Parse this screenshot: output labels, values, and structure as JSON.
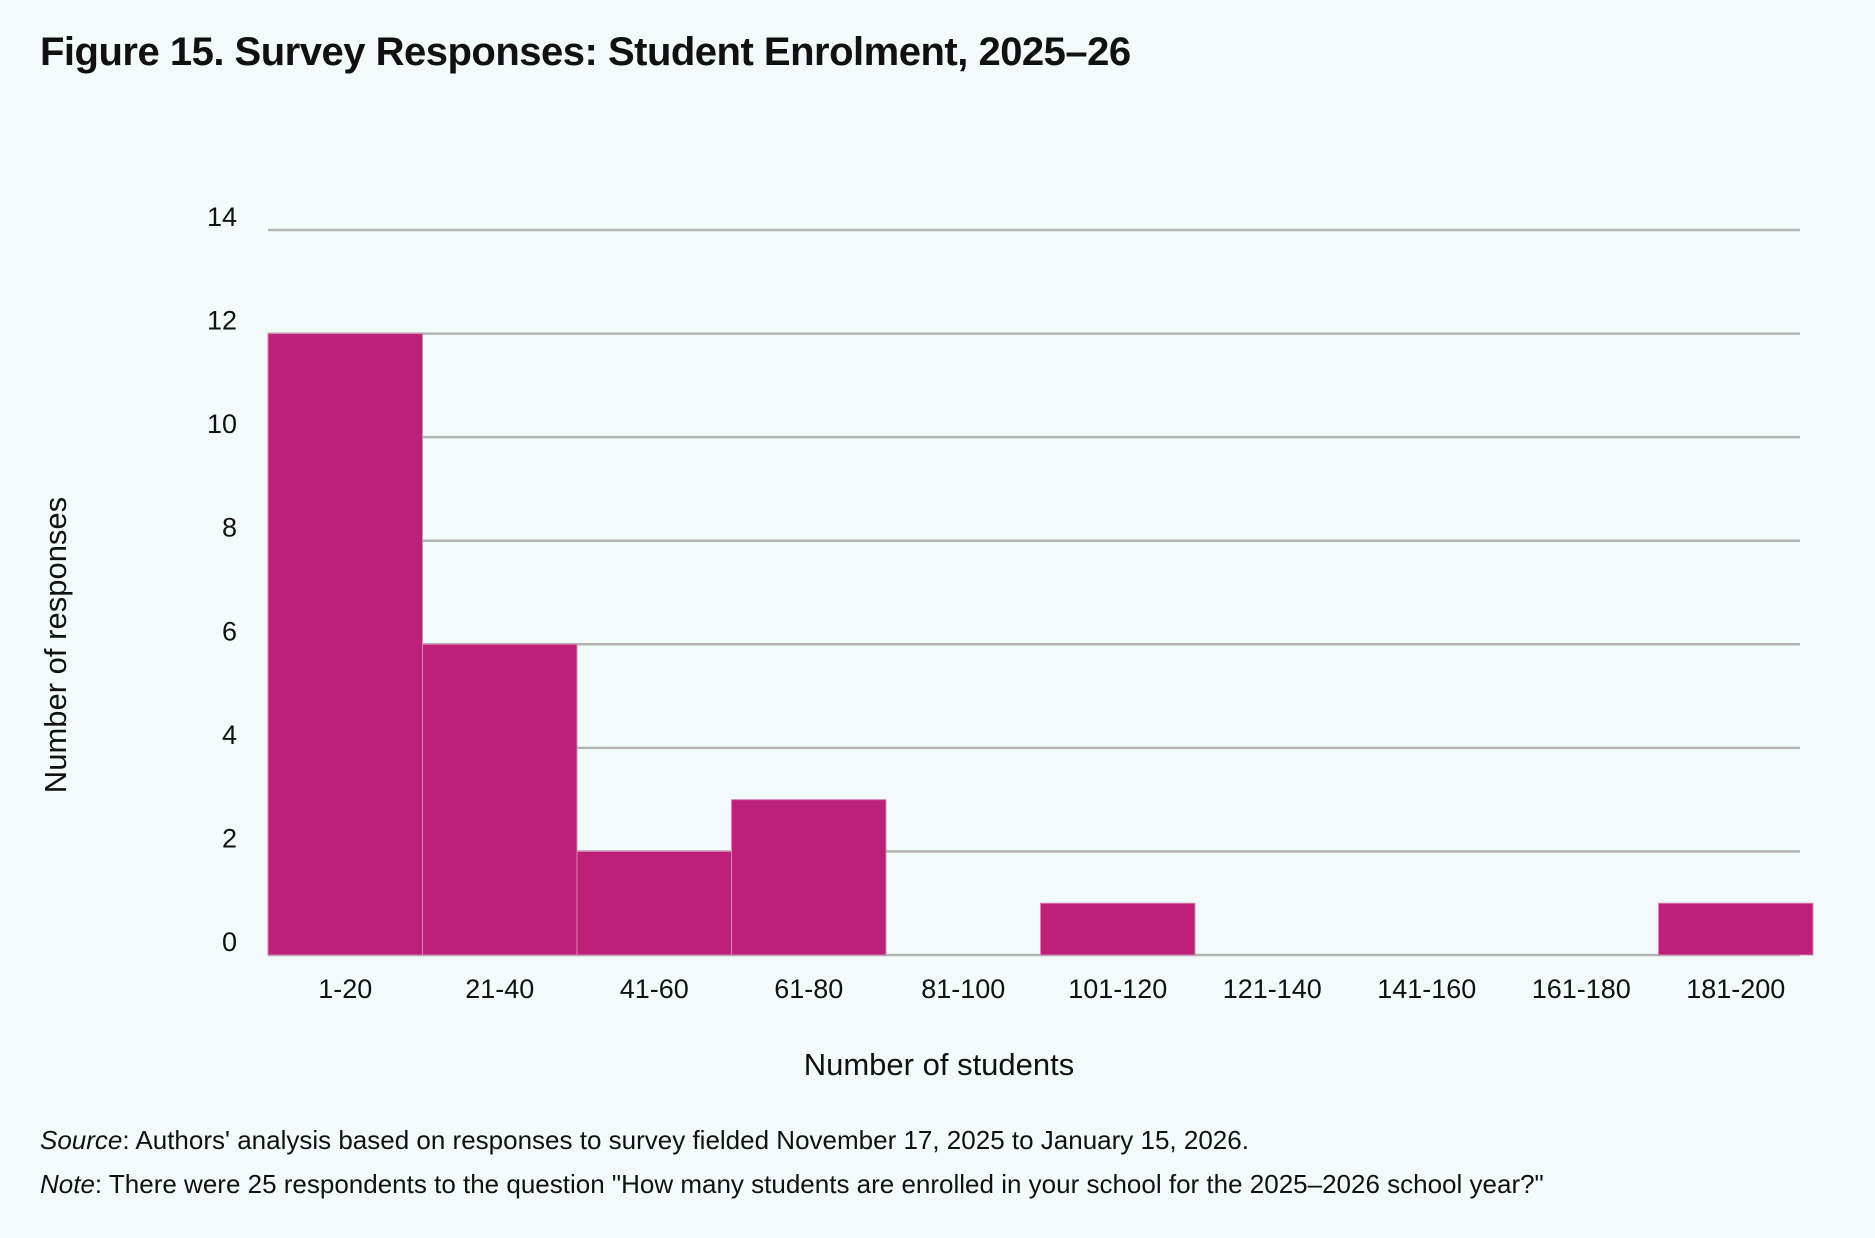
{
  "figure": {
    "title": "Figure 15. Survey Responses: Student Enrolment, 2025–26",
    "source_label": "Source",
    "source_text": ": Authors' analysis based on responses to survey fielded November 17, 2025 to January 15, 2026.",
    "note_label": "Note",
    "note_text": ": There were 25 respondents to the question \"How many students are enrolled in your school for the 2025–2026 school year?\""
  },
  "chart_data": {
    "type": "bar",
    "categories": [
      "1-20",
      "21-40",
      "41-60",
      "61-80",
      "81-100",
      "101-120",
      "121-140",
      "141-160",
      "161-180",
      "181-200"
    ],
    "values": [
      12,
      6,
      2,
      3,
      0,
      1,
      0,
      0,
      0,
      1
    ],
    "xlabel": "Number of students",
    "ylabel": "Number of responses",
    "ylim": [
      0,
      14
    ],
    "yticks": [
      0,
      2,
      4,
      6,
      8,
      10,
      12,
      14
    ],
    "grid": true,
    "bar_color": "#bc2079",
    "grid_color": "#b3b3b3"
  }
}
